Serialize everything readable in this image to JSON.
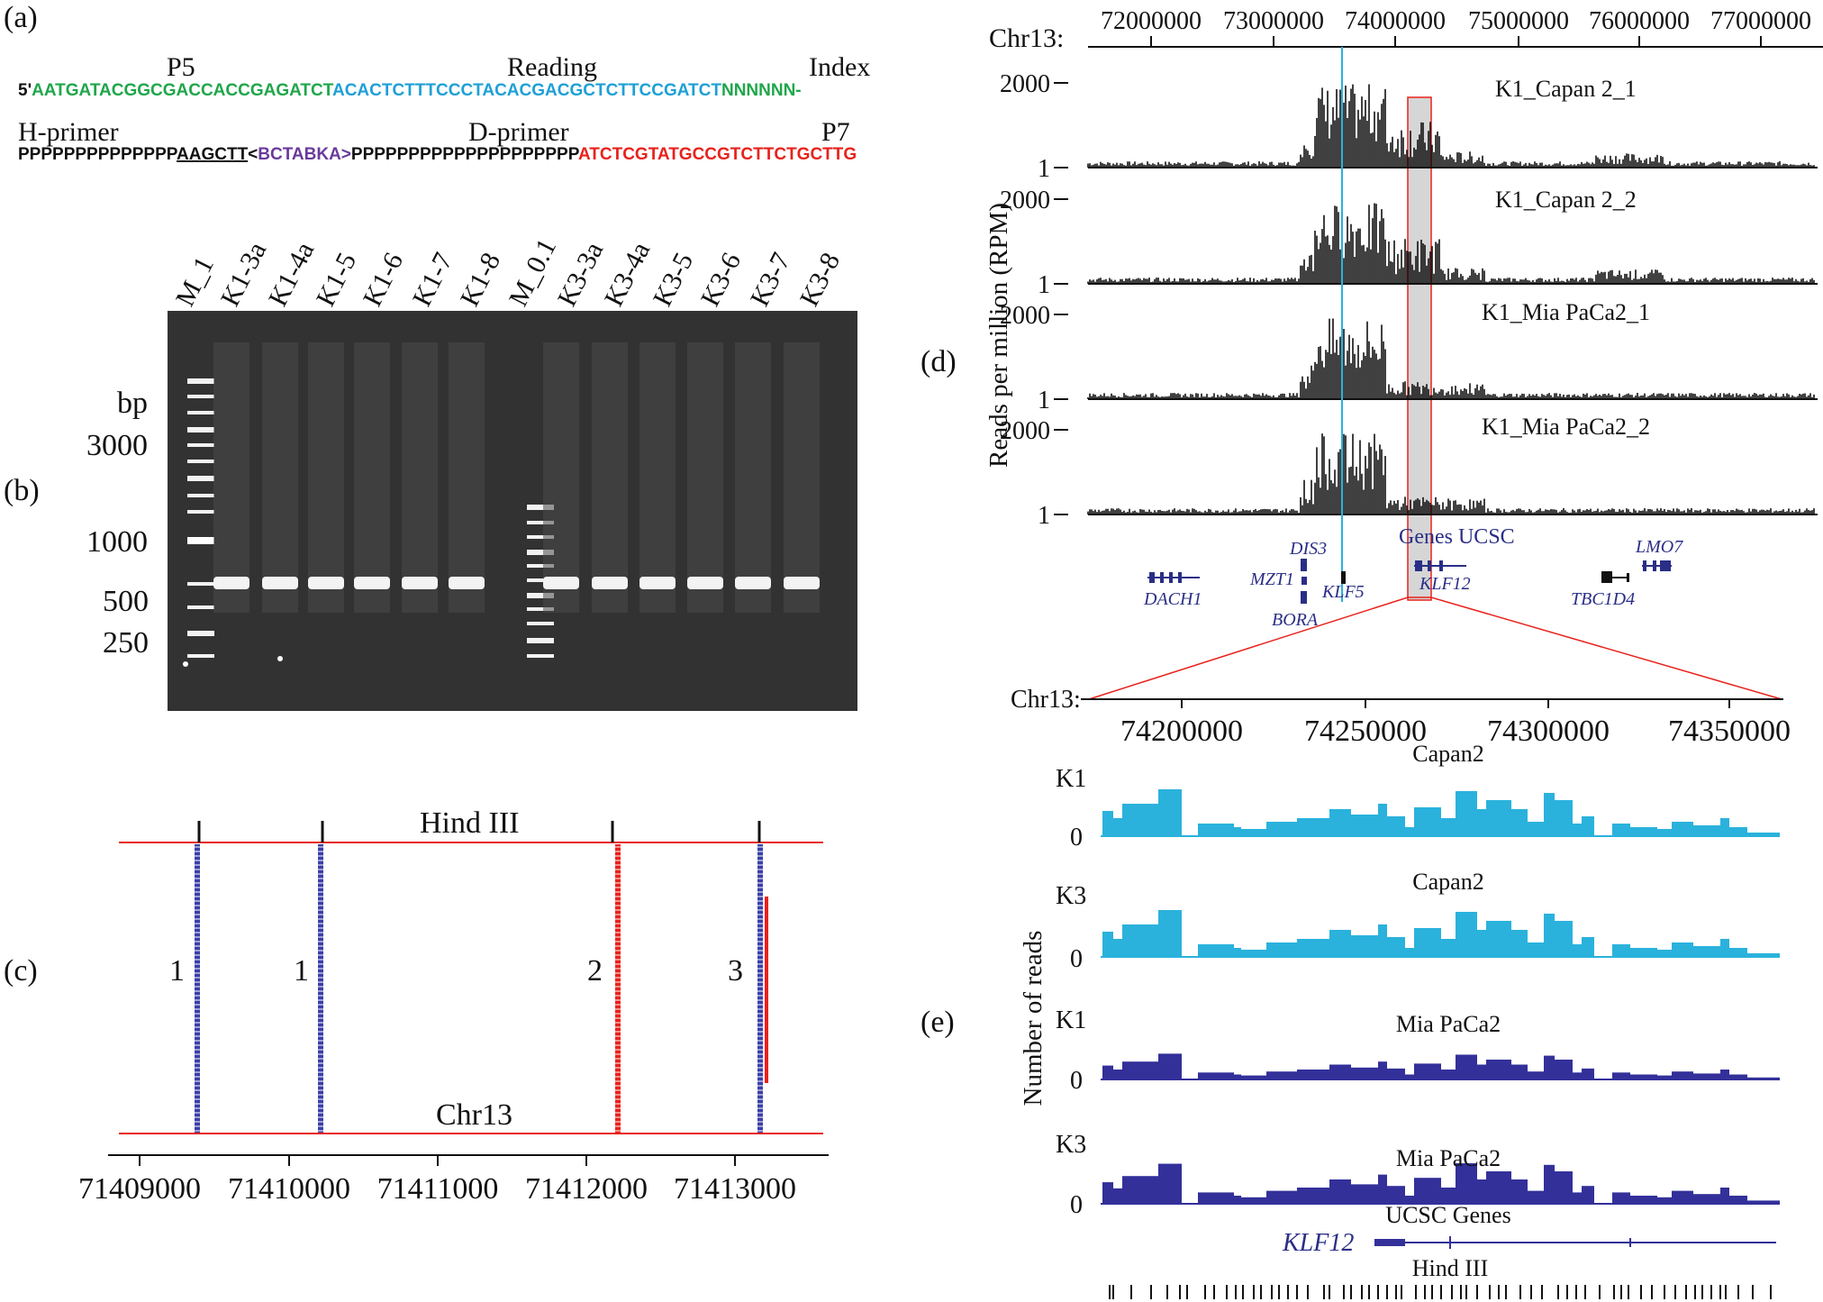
{
  "panel_labels": {
    "a": "(a)",
    "b": "(b)",
    "c": "(c)",
    "d": "(d)",
    "e": "(e)"
  },
  "panel_a": {
    "labels": {
      "p5": "P5",
      "reading": "Reading",
      "index": "Index",
      "h_primer": "H-primer",
      "d_primer": "D-primer",
      "p7": "P7"
    },
    "line1": {
      "prefix": "5'",
      "p5_seq": "AATGATACGGCGACCACCGAGATCT",
      "reading_seq": "ACACTCTTTCCCTACACGACGCTCTTCCGATCT",
      "index_seq": "NNNNNN-"
    },
    "line2": {
      "p_seq": "PPPPPPPPPPPPPP",
      "hind_site": "AAGCTT",
      "lt": "<",
      "bc_seq": "BCTABKA>",
      "p_seq2": "PPPPPPPPPPPPPPPPPPPP",
      "p7_seq": "ATCTCGTATGCCGTCTTCTGCTTG"
    },
    "colors": {
      "p5": "#1fa64a",
      "reading": "#1ea0d6",
      "barcode": "#6a3a9c",
      "p7": "#e8221c"
    }
  },
  "panel_b": {
    "lanes": [
      "M_1",
      "K1-3a",
      "K1-4a",
      "K1-5",
      "K1-6",
      "K1-7",
      "K1-8",
      "M_0.1",
      "K3-3a",
      "K3-4a",
      "K3-5",
      "K3-6",
      "K3-7",
      "K3-8"
    ],
    "axis_title": "bp",
    "size_labels": [
      "3000",
      "1000",
      "500",
      "250"
    ]
  },
  "panel_c": {
    "enzyme_label": "Hind III",
    "chr_label": "Chr13",
    "axis_ticks": [
      "71409000",
      "71410000",
      "71411000",
      "71412000",
      "71413000"
    ],
    "read_groups": [
      "1",
      "1",
      "2",
      "3"
    ],
    "colors": {
      "blue": "#3a3fa8",
      "red": "#e8221c"
    }
  },
  "panel_d": {
    "chr_label": "Chr13:",
    "top_ticks": [
      "72000000",
      "73000000",
      "74000000",
      "75000000",
      "76000000",
      "77000000"
    ],
    "y_title": "Reads per million (RPM)",
    "tracks": [
      {
        "name": "K1_Capan 2_1",
        "ymax": "2000",
        "ymin": "1"
      },
      {
        "name": "K1_Capan 2_2",
        "ymax": "2000",
        "ymin": "1"
      },
      {
        "name": "K1_Mia PaCa2_1",
        "ymax": "2000",
        "ymin": "1"
      },
      {
        "name": "K1_Mia PaCa2_2",
        "ymax": "2000",
        "ymin": "1"
      }
    ],
    "genes_title": "Genes UCSC",
    "genes": [
      "DACH1",
      "DIS3",
      "MZT1",
      "BORA",
      "KLF5",
      "KLF12",
      "TBC1D4",
      "LMO7"
    ],
    "zoom_chr_label": "Chr13:",
    "zoom_ticks": [
      "74200000",
      "74250000",
      "74300000",
      "74350000"
    ]
  },
  "panel_e": {
    "y_title": "Number of reads",
    "tracks": [
      {
        "sample": "K1",
        "cell": "Capan2",
        "zero": "0"
      },
      {
        "sample": "K3",
        "cell": "Capan2",
        "zero": "0"
      },
      {
        "sample": "K1",
        "cell": "Mia PaCa2",
        "zero": "0"
      },
      {
        "sample": "K3",
        "cell": "Mia PaCa2",
        "zero": "0"
      }
    ],
    "ucsc_label": "UCSC Genes",
    "gene_label": "KLF12",
    "hind_label": "Hind III",
    "colors": {
      "capan": "#2ab2dc",
      "mia": "#33309a"
    }
  }
}
